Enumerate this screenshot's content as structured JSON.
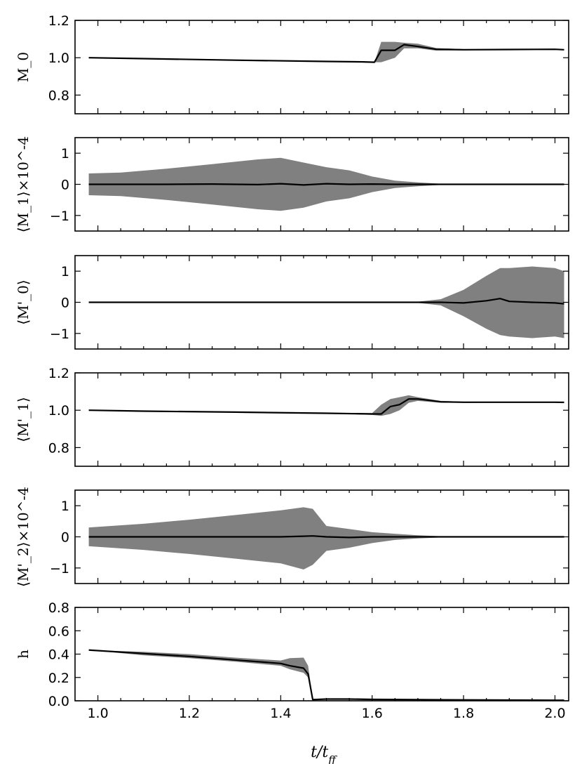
{
  "chart_data": {
    "type": "line",
    "xlabel": "t/t_ff",
    "x_tick_labels": [
      "1.0",
      "1.2",
      "1.4",
      "1.6",
      "1.8",
      "2.0"
    ],
    "xlim": [
      0.95,
      2.03
    ],
    "panels": [
      {
        "ylabel": "M_0",
        "ylim": [
          0.7,
          1.2
        ],
        "yticks": [
          0.8,
          1.0,
          1.2
        ],
        "ytick_labels": [
          "0.8",
          "1.0",
          "1.2"
        ],
        "x": [
          0.98,
          1.1,
          1.3,
          1.5,
          1.58,
          1.605,
          1.62,
          1.65,
          1.67,
          1.7,
          1.74,
          1.8,
          1.9,
          2.0,
          2.02
        ],
        "mean": [
          1.0,
          0.995,
          0.987,
          0.98,
          0.978,
          0.976,
          1.04,
          1.04,
          1.07,
          1.06,
          1.045,
          1.043,
          1.044,
          1.045,
          1.043
        ],
        "upper": [
          1.0,
          0.995,
          0.987,
          0.98,
          0.978,
          0.976,
          1.085,
          1.085,
          1.08,
          1.075,
          1.052,
          1.046,
          1.046,
          1.047,
          1.045
        ],
        "lower": [
          1.0,
          0.995,
          0.987,
          0.98,
          0.978,
          0.976,
          0.976,
          1.0,
          1.05,
          1.05,
          1.038,
          1.04,
          1.042,
          1.043,
          1.041
        ]
      },
      {
        "ylabel": "⟨M_1⟩×10^-4",
        "ylim": [
          -1.5,
          1.5
        ],
        "yticks": [
          -1,
          0,
          1
        ],
        "ytick_labels": [
          "−1",
          "0",
          "1"
        ],
        "x": [
          0.98,
          1.05,
          1.15,
          1.25,
          1.35,
          1.4,
          1.45,
          1.5,
          1.55,
          1.6,
          1.65,
          1.7,
          1.75,
          1.8,
          1.9,
          2.02
        ],
        "mean": [
          0,
          0,
          0,
          0.01,
          -0.01,
          0.02,
          -0.02,
          0.02,
          0,
          0.01,
          0,
          0,
          0,
          0,
          0,
          0
        ],
        "upper": [
          0.35,
          0.38,
          0.5,
          0.65,
          0.8,
          0.85,
          0.7,
          0.55,
          0.45,
          0.25,
          0.12,
          0.06,
          0.02,
          0.0,
          0.0,
          0.0
        ],
        "lower": [
          -0.35,
          -0.38,
          -0.5,
          -0.65,
          -0.8,
          -0.85,
          -0.75,
          -0.55,
          -0.45,
          -0.25,
          -0.12,
          -0.06,
          -0.02,
          0.0,
          0.0,
          0.0
        ]
      },
      {
        "ylabel": "⟨M'_0⟩",
        "ylim": [
          -1.5,
          1.5
        ],
        "yticks": [
          -1,
          0,
          1
        ],
        "ytick_labels": [
          "−1",
          "0",
          "1"
        ],
        "x": [
          0.98,
          1.6,
          1.7,
          1.75,
          1.8,
          1.85,
          1.88,
          1.9,
          1.95,
          2.0,
          2.02
        ],
        "mean": [
          0,
          0,
          0.0,
          0.0,
          -0.02,
          0.05,
          0.12,
          0.03,
          0.0,
          -0.02,
          -0.05
        ],
        "upper": [
          0,
          0,
          0.02,
          0.1,
          0.4,
          0.85,
          1.1,
          1.1,
          1.15,
          1.1,
          1.0
        ],
        "lower": [
          0,
          0,
          -0.02,
          -0.1,
          -0.45,
          -0.85,
          -1.05,
          -1.1,
          -1.15,
          -1.1,
          -1.15
        ]
      },
      {
        "ylabel": "⟨M'_1⟩",
        "ylim": [
          0.7,
          1.2
        ],
        "yticks": [
          0.8,
          1.0,
          1.2
        ],
        "ytick_labels": [
          "0.8",
          "1.0",
          "1.2"
        ],
        "x": [
          0.98,
          1.1,
          1.3,
          1.5,
          1.6,
          1.62,
          1.64,
          1.66,
          1.68,
          1.7,
          1.75,
          1.8,
          1.9,
          2.0,
          2.02
        ],
        "mean": [
          1.0,
          0.995,
          0.99,
          0.984,
          0.98,
          0.98,
          1.02,
          1.03,
          1.06,
          1.06,
          1.045,
          1.043,
          1.043,
          1.043,
          1.042
        ],
        "upper": [
          1.0,
          0.995,
          0.99,
          0.984,
          0.985,
          1.03,
          1.06,
          1.07,
          1.08,
          1.07,
          1.05,
          1.046,
          1.045,
          1.045,
          1.044
        ],
        "lower": [
          1.0,
          0.995,
          0.99,
          0.984,
          0.975,
          0.97,
          0.98,
          1.0,
          1.04,
          1.05,
          1.04,
          1.04,
          1.041,
          1.041,
          1.04
        ]
      },
      {
        "ylabel": "⟨M'_2⟩×10^-4",
        "ylim": [
          -1.5,
          1.5
        ],
        "yticks": [
          -1,
          0,
          1
        ],
        "ytick_labels": [
          "−1",
          "0",
          "1"
        ],
        "x": [
          0.98,
          1.1,
          1.2,
          1.3,
          1.4,
          1.45,
          1.47,
          1.5,
          1.55,
          1.6,
          1.65,
          1.7,
          1.75,
          1.8,
          1.9,
          2.02
        ],
        "mean": [
          0,
          0,
          0,
          0,
          0,
          0.02,
          0.03,
          0,
          -0.02,
          0,
          0,
          0,
          0,
          0,
          0,
          0
        ],
        "upper": [
          0.3,
          0.42,
          0.55,
          0.7,
          0.85,
          0.95,
          0.9,
          0.35,
          0.25,
          0.15,
          0.1,
          0.05,
          0.02,
          0.0,
          0.0,
          0.0
        ],
        "lower": [
          -0.3,
          -0.42,
          -0.55,
          -0.7,
          -0.85,
          -1.05,
          -0.9,
          -0.45,
          -0.35,
          -0.2,
          -0.1,
          -0.05,
          -0.02,
          0.0,
          0.0,
          0.0
        ]
      },
      {
        "ylabel": "h",
        "ylim": [
          0.0,
          0.8
        ],
        "yticks": [
          0.0,
          0.2,
          0.4,
          0.6,
          0.8
        ],
        "ytick_labels": [
          "0.0",
          "0.2",
          "0.4",
          "0.6",
          "0.8"
        ],
        "x": [
          0.98,
          1.1,
          1.2,
          1.3,
          1.4,
          1.42,
          1.45,
          1.46,
          1.47,
          1.5,
          1.55,
          1.6,
          1.7,
          1.8,
          2.0,
          2.02
        ],
        "mean": [
          0.435,
          0.405,
          0.38,
          0.35,
          0.32,
          0.3,
          0.28,
          0.23,
          0.01,
          0.015,
          0.015,
          0.012,
          0.01,
          0.008,
          0.005,
          0.005
        ],
        "upper": [
          0.435,
          0.42,
          0.4,
          0.37,
          0.345,
          0.365,
          0.37,
          0.3,
          0.015,
          0.02,
          0.02,
          0.015,
          0.012,
          0.01,
          0.006,
          0.006
        ],
        "lower": [
          0.435,
          0.39,
          0.365,
          0.335,
          0.3,
          0.27,
          0.24,
          0.2,
          0.005,
          0.01,
          0.01,
          0.008,
          0.008,
          0.006,
          0.004,
          0.004
        ]
      }
    ]
  }
}
